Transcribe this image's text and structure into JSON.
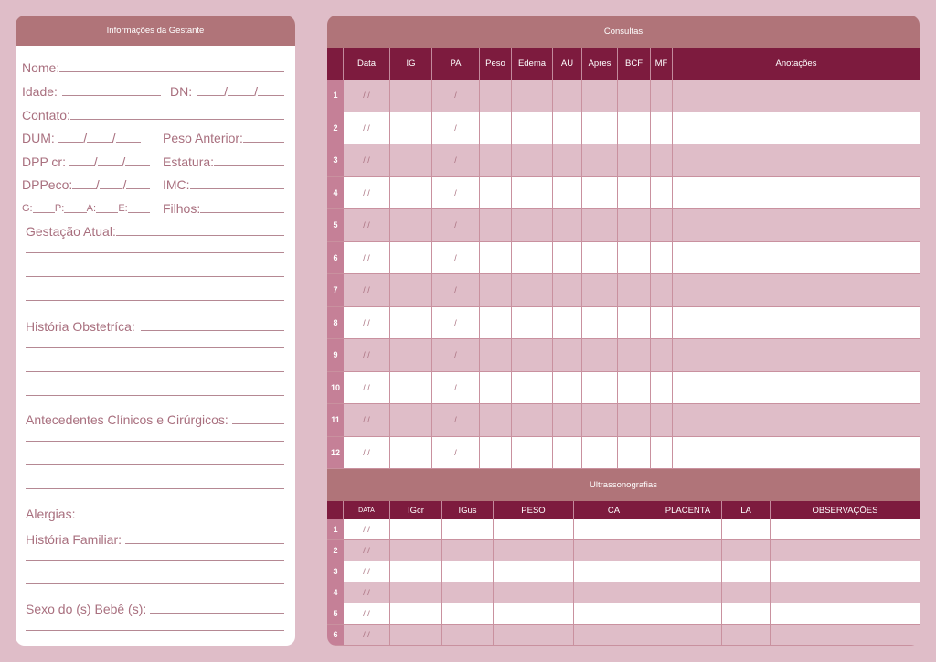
{
  "gestante": {
    "title": "Informações da Gestante",
    "nome": "Nome:",
    "idade": "Idade:",
    "dn": "DN:",
    "contato": "Contato:",
    "dum": "DUM:",
    "peso_anterior": "Peso Anterior:",
    "dpp_cr": "DPP cr:",
    "estatura": "Estatura:",
    "dppeco": "DPPeco:",
    "imc": "IMC:",
    "g": "G:",
    "p": "P:",
    "a": "A:",
    "e": "E:",
    "filhos": "Filhos:",
    "gestacao_atual": "Gestação Atual:",
    "historia_obstetrica": "História Obstetríca:",
    "antecedentes": "Antecedentes Clínicos e Cirúrgicos:",
    "alergias": "Alergias:",
    "historia_familiar": "História Familiar:",
    "sexo_bebe": "Sexo do (s) Bebê (s):",
    "slash": "/"
  },
  "consultas": {
    "title": "Consultas",
    "columns": [
      "",
      "Data",
      "IG",
      "PA",
      "Peso",
      "Edema",
      "AU",
      "Apres",
      "BCF",
      "MF",
      "Anotações"
    ],
    "rows": [
      "1",
      "2",
      "3",
      "4",
      "5",
      "6",
      "7",
      "8",
      "9",
      "10",
      "11",
      "12"
    ],
    "date_placeholder": "/   /",
    "pa_placeholder": "/"
  },
  "ultrassonografias": {
    "title": "Ultrassonografias",
    "columns": [
      "",
      "DATA",
      "IGcr",
      "IGus",
      "PESO",
      "CA",
      "PLACENTA",
      "LA",
      "OBSERVAÇÕES"
    ],
    "rows": [
      "1",
      "2",
      "3",
      "4",
      "5",
      "6"
    ],
    "date_placeholder": "/   /"
  },
  "colors": {
    "header": "#b07479",
    "column_header": "#7d1b3e",
    "row_alt": "#dfbdc8",
    "row_number": "#c58097",
    "text": "#a9707f"
  }
}
